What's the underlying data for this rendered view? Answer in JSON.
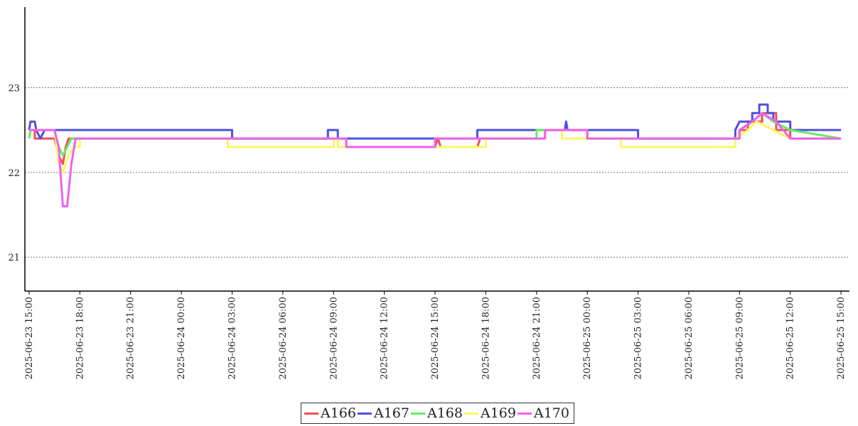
{
  "chart_data": {
    "type": "line",
    "title": "",
    "xlabel": "",
    "ylabel": "",
    "ylim": [
      20.6,
      23.95
    ],
    "yticks": [
      21,
      22,
      23
    ],
    "xlim": [
      "2025-06-23 14:45",
      "2025-06-25 15:30"
    ],
    "xticks": [
      "2025-06-23 15:00",
      "2025-06-23 18:00",
      "2025-06-23 21:00",
      "2025-06-24 00:00",
      "2025-06-24 03:00",
      "2025-06-24 06:00",
      "2025-06-24 09:00",
      "2025-06-24 12:00",
      "2025-06-24 15:00",
      "2025-06-24 18:00",
      "2025-06-24 21:00",
      "2025-06-25 00:00",
      "2025-06-25 03:00",
      "2025-06-25 06:00",
      "2025-06-25 09:00",
      "2025-06-25 12:00",
      "2025-06-25 15:00"
    ],
    "grid": "horizontal dotted",
    "legend_position": "bottom-center",
    "series": [
      {
        "name": "A166",
        "color": "#f05050",
        "points": [
          [
            "2025-06-23 15:00",
            22.5
          ],
          [
            "2025-06-23 15:20",
            22.5
          ],
          [
            "2025-06-23 15:20",
            22.4
          ],
          [
            "2025-06-23 16:00",
            22.4
          ],
          [
            "2025-06-23 16:30",
            22.4
          ],
          [
            "2025-06-23 16:45",
            22.2
          ],
          [
            "2025-06-23 17:00",
            22.1
          ],
          [
            "2025-06-23 17:10",
            22.3
          ],
          [
            "2025-06-23 17:20",
            22.4
          ],
          [
            "2025-06-24 09:45",
            22.4
          ],
          [
            "2025-06-24 09:45",
            22.3
          ],
          [
            "2025-06-24 15:00",
            22.3
          ],
          [
            "2025-06-24 15:10",
            22.4
          ],
          [
            "2025-06-24 15:20",
            22.3
          ],
          [
            "2025-06-24 17:30",
            22.3
          ],
          [
            "2025-06-24 17:40",
            22.4
          ],
          [
            "2025-06-24 21:30",
            22.4
          ],
          [
            "2025-06-24 21:30",
            22.5
          ],
          [
            "2025-06-25 00:00",
            22.5
          ],
          [
            "2025-06-25 00:00",
            22.4
          ],
          [
            "2025-06-25 09:00",
            22.4
          ],
          [
            "2025-06-25 09:00",
            22.5
          ],
          [
            "2025-06-25 09:30",
            22.5
          ],
          [
            "2025-06-25 09:30",
            22.6
          ],
          [
            "2025-06-25 10:20",
            22.6
          ],
          [
            "2025-06-25 10:20",
            22.7
          ],
          [
            "2025-06-25 11:10",
            22.7
          ],
          [
            "2025-06-25 11:10",
            22.5
          ],
          [
            "2025-06-25 12:00",
            22.5
          ],
          [
            "2025-06-25 12:00",
            22.4
          ],
          [
            "2025-06-25 15:00",
            22.4
          ]
        ]
      },
      {
        "name": "A167",
        "color": "#5050e0",
        "points": [
          [
            "2025-06-23 15:00",
            22.5
          ],
          [
            "2025-06-23 15:05",
            22.6
          ],
          [
            "2025-06-23 15:20",
            22.6
          ],
          [
            "2025-06-23 15:25",
            22.5
          ],
          [
            "2025-06-23 15:40",
            22.4
          ],
          [
            "2025-06-23 15:55",
            22.5
          ],
          [
            "2025-06-24 03:00",
            22.5
          ],
          [
            "2025-06-24 03:00",
            22.4
          ],
          [
            "2025-06-24 08:40",
            22.4
          ],
          [
            "2025-06-24 08:40",
            22.5
          ],
          [
            "2025-06-24 09:15",
            22.5
          ],
          [
            "2025-06-24 09:15",
            22.4
          ],
          [
            "2025-06-24 17:30",
            22.4
          ],
          [
            "2025-06-24 17:30",
            22.5
          ],
          [
            "2025-06-24 22:40",
            22.5
          ],
          [
            "2025-06-24 22:45",
            22.6
          ],
          [
            "2025-06-24 22:50",
            22.5
          ],
          [
            "2025-06-25 03:00",
            22.5
          ],
          [
            "2025-06-25 03:00",
            22.4
          ],
          [
            "2025-06-25 08:45",
            22.4
          ],
          [
            "2025-06-25 08:45",
            22.5
          ],
          [
            "2025-06-25 09:00",
            22.6
          ],
          [
            "2025-06-25 09:45",
            22.6
          ],
          [
            "2025-06-25 09:45",
            22.7
          ],
          [
            "2025-06-25 10:10",
            22.7
          ],
          [
            "2025-06-25 10:10",
            22.8
          ],
          [
            "2025-06-25 10:40",
            22.8
          ],
          [
            "2025-06-25 10:40",
            22.7
          ],
          [
            "2025-06-25 11:00",
            22.7
          ],
          [
            "2025-06-25 11:00",
            22.6
          ],
          [
            "2025-06-25 12:00",
            22.6
          ],
          [
            "2025-06-25 12:00",
            22.5
          ],
          [
            "2025-06-25 15:00",
            22.5
          ]
        ]
      },
      {
        "name": "A168",
        "color": "#60f060",
        "points": [
          [
            "2025-06-23 15:00",
            22.4
          ],
          [
            "2025-06-23 15:05",
            22.5
          ],
          [
            "2025-06-23 16:30",
            22.5
          ],
          [
            "2025-06-23 16:45",
            22.3
          ],
          [
            "2025-06-23 17:00",
            22.2
          ],
          [
            "2025-06-23 17:15",
            22.3
          ],
          [
            "2025-06-23 17:30",
            22.4
          ],
          [
            "2025-06-24 09:45",
            22.4
          ],
          [
            "2025-06-24 09:45",
            22.3
          ],
          [
            "2025-06-24 15:00",
            22.3
          ],
          [
            "2025-06-24 15:00",
            22.4
          ],
          [
            "2025-06-24 21:00",
            22.4
          ],
          [
            "2025-06-24 21:00",
            22.5
          ],
          [
            "2025-06-25 00:00",
            22.5
          ],
          [
            "2025-06-25 00:00",
            22.4
          ],
          [
            "2025-06-25 09:00",
            22.4
          ],
          [
            "2025-06-25 09:00",
            22.5
          ],
          [
            "2025-06-25 09:45",
            22.6
          ],
          [
            "2025-06-25 10:20",
            22.7
          ],
          [
            "2025-06-25 11:00",
            22.6
          ],
          [
            "2025-06-25 12:00",
            22.5
          ],
          [
            "2025-06-25 15:00",
            22.4
          ]
        ]
      },
      {
        "name": "A169",
        "color": "#f8f860",
        "points": [
          [
            "2025-06-23 15:00",
            22.5
          ],
          [
            "2025-06-23 16:30",
            22.5
          ],
          [
            "2025-06-23 16:45",
            22.1
          ],
          [
            "2025-06-23 17:00",
            22.0
          ],
          [
            "2025-06-23 17:20",
            22.2
          ],
          [
            "2025-06-23 17:40",
            22.3
          ],
          [
            "2025-06-23 18:00",
            22.3
          ],
          [
            "2025-06-23 18:00",
            22.4
          ],
          [
            "2025-06-24 02:45",
            22.4
          ],
          [
            "2025-06-24 02:45",
            22.3
          ],
          [
            "2025-06-24 09:00",
            22.3
          ],
          [
            "2025-06-24 09:00",
            22.4
          ],
          [
            "2025-06-24 09:15",
            22.4
          ],
          [
            "2025-06-24 09:15",
            22.3
          ],
          [
            "2025-06-24 18:00",
            22.3
          ],
          [
            "2025-06-24 18:00",
            22.4
          ],
          [
            "2025-06-24 21:30",
            22.4
          ],
          [
            "2025-06-24 21:30",
            22.5
          ],
          [
            "2025-06-24 22:30",
            22.5
          ],
          [
            "2025-06-24 22:30",
            22.4
          ],
          [
            "2025-06-25 02:00",
            22.4
          ],
          [
            "2025-06-25 02:00",
            22.3
          ],
          [
            "2025-06-25 08:45",
            22.3
          ],
          [
            "2025-06-25 08:45",
            22.4
          ],
          [
            "2025-06-25 09:30",
            22.5
          ],
          [
            "2025-06-25 10:00",
            22.6
          ],
          [
            "2025-06-25 11:00",
            22.5
          ],
          [
            "2025-06-25 12:00",
            22.4
          ],
          [
            "2025-06-25 15:00",
            22.4
          ]
        ]
      },
      {
        "name": "A170",
        "color": "#f060f0",
        "points": [
          [
            "2025-06-23 15:00",
            22.5
          ],
          [
            "2025-06-23 16:30",
            22.5
          ],
          [
            "2025-06-23 16:45",
            22.3
          ],
          [
            "2025-06-23 17:00",
            21.6
          ],
          [
            "2025-06-23 17:15",
            21.6
          ],
          [
            "2025-06-23 17:30",
            22.1
          ],
          [
            "2025-06-23 17:45",
            22.4
          ],
          [
            "2025-06-24 09:45",
            22.4
          ],
          [
            "2025-06-24 09:45",
            22.3
          ],
          [
            "2025-06-24 15:00",
            22.3
          ],
          [
            "2025-06-24 15:00",
            22.4
          ],
          [
            "2025-06-24 21:30",
            22.4
          ],
          [
            "2025-06-24 21:30",
            22.5
          ],
          [
            "2025-06-25 00:00",
            22.5
          ],
          [
            "2025-06-25 00:00",
            22.4
          ],
          [
            "2025-06-25 09:00",
            22.4
          ],
          [
            "2025-06-25 09:00",
            22.5
          ],
          [
            "2025-06-25 09:45",
            22.6
          ],
          [
            "2025-06-25 10:20",
            22.7
          ],
          [
            "2025-06-25 11:10",
            22.6
          ],
          [
            "2025-06-25 12:00",
            22.4
          ],
          [
            "2025-06-25 15:00",
            22.4
          ]
        ]
      }
    ]
  }
}
